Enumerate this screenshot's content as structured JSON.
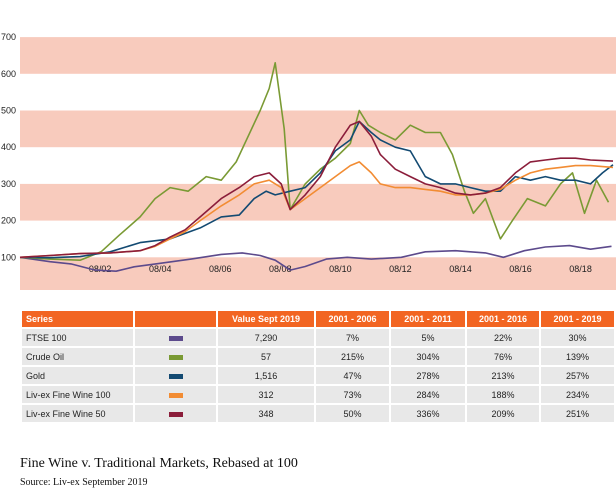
{
  "chart_data": {
    "type": "line",
    "x_unit": "year",
    "ylim": [
      0,
      700
    ],
    "y_ticks": [
      100,
      200,
      300,
      400,
      500,
      600,
      700
    ],
    "x_tick_labels": [
      {
        "label": "08/02",
        "x": 2002.67
      },
      {
        "label": "08/04",
        "x": 2004.67
      },
      {
        "label": "08/06",
        "x": 2006.67
      },
      {
        "label": "08/08",
        "x": 2008.67
      },
      {
        "label": "08/10",
        "x": 2010.67
      },
      {
        "label": "08/12",
        "x": 2012.67
      },
      {
        "label": "08/14",
        "x": 2014.67
      },
      {
        "label": "08/16",
        "x": 2016.67
      },
      {
        "label": "08/18",
        "x": 2018.67
      }
    ],
    "band_color": "#f8cbbd",
    "series": [
      {
        "name": "FTSE 100",
        "color": "#5c4a8c",
        "points": [
          [
            2000.0,
            100
          ],
          [
            2001.0,
            88
          ],
          [
            2001.7,
            82
          ],
          [
            2002.5,
            65
          ],
          [
            2003.2,
            62
          ],
          [
            2003.8,
            74
          ],
          [
            2004.7,
            84
          ],
          [
            2005.7,
            95
          ],
          [
            2006.7,
            108
          ],
          [
            2007.4,
            112
          ],
          [
            2008.0,
            105
          ],
          [
            2008.5,
            92
          ],
          [
            2009.0,
            65
          ],
          [
            2009.5,
            75
          ],
          [
            2010.2,
            95
          ],
          [
            2010.9,
            100
          ],
          [
            2011.7,
            95
          ],
          [
            2012.7,
            100
          ],
          [
            2013.5,
            115
          ],
          [
            2014.5,
            118
          ],
          [
            2015.5,
            112
          ],
          [
            2016.1,
            100
          ],
          [
            2016.8,
            118
          ],
          [
            2017.5,
            128
          ],
          [
            2018.3,
            132
          ],
          [
            2019.0,
            122
          ],
          [
            2019.7,
            130
          ]
        ]
      },
      {
        "name": "Crude Oil",
        "color": "#7a9a34",
        "points": [
          [
            2000.0,
            100
          ],
          [
            2001.0,
            95
          ],
          [
            2002.0,
            92
          ],
          [
            2002.7,
            115
          ],
          [
            2003.3,
            160
          ],
          [
            2004.0,
            210
          ],
          [
            2004.5,
            260
          ],
          [
            2005.0,
            290
          ],
          [
            2005.6,
            280
          ],
          [
            2006.2,
            320
          ],
          [
            2006.7,
            310
          ],
          [
            2007.2,
            360
          ],
          [
            2007.6,
            430
          ],
          [
            2008.0,
            500
          ],
          [
            2008.3,
            560
          ],
          [
            2008.5,
            630
          ],
          [
            2008.8,
            450
          ],
          [
            2009.0,
            230
          ],
          [
            2009.5,
            300
          ],
          [
            2010.0,
            340
          ],
          [
            2010.5,
            370
          ],
          [
            2011.0,
            410
          ],
          [
            2011.3,
            500
          ],
          [
            2011.6,
            460
          ],
          [
            2012.0,
            440
          ],
          [
            2012.5,
            420
          ],
          [
            2013.0,
            460
          ],
          [
            2013.5,
            440
          ],
          [
            2014.0,
            440
          ],
          [
            2014.4,
            380
          ],
          [
            2014.8,
            280
          ],
          [
            2015.1,
            220
          ],
          [
            2015.5,
            260
          ],
          [
            2016.0,
            150
          ],
          [
            2016.4,
            200
          ],
          [
            2016.9,
            260
          ],
          [
            2017.5,
            240
          ],
          [
            2018.0,
            300
          ],
          [
            2018.4,
            330
          ],
          [
            2018.8,
            220
          ],
          [
            2019.2,
            310
          ],
          [
            2019.6,
            250
          ]
        ]
      },
      {
        "name": "Gold",
        "color": "#134a72",
        "points": [
          [
            2000.0,
            100
          ],
          [
            2001.0,
            99
          ],
          [
            2002.0,
            102
          ],
          [
            2003.0,
            115
          ],
          [
            2004.0,
            140
          ],
          [
            2005.0,
            150
          ],
          [
            2006.0,
            180
          ],
          [
            2006.7,
            210
          ],
          [
            2007.3,
            215
          ],
          [
            2007.8,
            260
          ],
          [
            2008.2,
            280
          ],
          [
            2008.5,
            270
          ],
          [
            2009.0,
            280
          ],
          [
            2009.5,
            290
          ],
          [
            2010.0,
            330
          ],
          [
            2010.5,
            390
          ],
          [
            2011.0,
            420
          ],
          [
            2011.3,
            470
          ],
          [
            2011.7,
            440
          ],
          [
            2012.0,
            420
          ],
          [
            2012.5,
            400
          ],
          [
            2013.0,
            390
          ],
          [
            2013.5,
            320
          ],
          [
            2014.0,
            300
          ],
          [
            2014.5,
            300
          ],
          [
            2015.0,
            290
          ],
          [
            2015.5,
            280
          ],
          [
            2016.0,
            280
          ],
          [
            2016.5,
            320
          ],
          [
            2017.0,
            310
          ],
          [
            2017.5,
            320
          ],
          [
            2018.0,
            310
          ],
          [
            2018.5,
            310
          ],
          [
            2019.0,
            300
          ],
          [
            2019.4,
            330
          ],
          [
            2019.75,
            352
          ]
        ]
      },
      {
        "name": "Liv-ex Fine Wine 100",
        "color": "#f28c33",
        "points": [
          [
            2000.0,
            100
          ],
          [
            2001.0,
            105
          ],
          [
            2002.0,
            110
          ],
          [
            2003.0,
            112
          ],
          [
            2004.0,
            118
          ],
          [
            2004.5,
            130
          ],
          [
            2005.0,
            150
          ],
          [
            2005.5,
            170
          ],
          [
            2006.0,
            200
          ],
          [
            2006.7,
            240
          ],
          [
            2007.3,
            270
          ],
          [
            2007.8,
            300
          ],
          [
            2008.3,
            310
          ],
          [
            2008.7,
            290
          ],
          [
            2009.0,
            230
          ],
          [
            2009.5,
            260
          ],
          [
            2010.0,
            290
          ],
          [
            2010.5,
            320
          ],
          [
            2011.0,
            350
          ],
          [
            2011.3,
            360
          ],
          [
            2011.7,
            330
          ],
          [
            2012.0,
            300
          ],
          [
            2012.5,
            290
          ],
          [
            2013.0,
            290
          ],
          [
            2013.5,
            285
          ],
          [
            2014.0,
            280
          ],
          [
            2014.5,
            270
          ],
          [
            2015.0,
            270
          ],
          [
            2015.5,
            275
          ],
          [
            2016.0,
            285
          ],
          [
            2016.5,
            310
          ],
          [
            2017.0,
            330
          ],
          [
            2017.5,
            340
          ],
          [
            2018.0,
            345
          ],
          [
            2018.5,
            350
          ],
          [
            2019.0,
            350
          ],
          [
            2019.75,
            345
          ]
        ]
      },
      {
        "name": "Liv-ex Fine Wine 50",
        "color": "#8b1d3a",
        "points": [
          [
            2000.0,
            100
          ],
          [
            2001.0,
            105
          ],
          [
            2002.0,
            110
          ],
          [
            2003.0,
            112
          ],
          [
            2004.0,
            118
          ],
          [
            2004.5,
            132
          ],
          [
            2005.0,
            155
          ],
          [
            2005.5,
            175
          ],
          [
            2006.0,
            210
          ],
          [
            2006.7,
            260
          ],
          [
            2007.3,
            290
          ],
          [
            2007.8,
            320
          ],
          [
            2008.3,
            330
          ],
          [
            2008.7,
            300
          ],
          [
            2009.0,
            230
          ],
          [
            2009.5,
            270
          ],
          [
            2010.0,
            320
          ],
          [
            2010.5,
            400
          ],
          [
            2011.0,
            460
          ],
          [
            2011.3,
            470
          ],
          [
            2011.7,
            430
          ],
          [
            2012.0,
            380
          ],
          [
            2012.5,
            340
          ],
          [
            2013.0,
            320
          ],
          [
            2013.5,
            300
          ],
          [
            2014.0,
            290
          ],
          [
            2014.5,
            275
          ],
          [
            2015.0,
            270
          ],
          [
            2015.5,
            275
          ],
          [
            2016.0,
            290
          ],
          [
            2016.5,
            330
          ],
          [
            2017.0,
            360
          ],
          [
            2017.5,
            365
          ],
          [
            2018.0,
            370
          ],
          [
            2018.5,
            370
          ],
          [
            2019.0,
            365
          ],
          [
            2019.75,
            362
          ]
        ]
      }
    ]
  },
  "table": {
    "headers": [
      "Series",
      "",
      "Value Sept 2019",
      "2001 - 2006",
      "2001 - 2011",
      "2001 - 2016",
      "2001 - 2019"
    ],
    "rows": [
      {
        "name": "FTSE 100",
        "color": "#5c4a8c",
        "value": "7,290",
        "p2006": "7%",
        "p2011": "5%",
        "p2016": "22%",
        "p2019": "30%"
      },
      {
        "name": "Crude Oil",
        "color": "#7a9a34",
        "value": "57",
        "p2006": "215%",
        "p2011": "304%",
        "p2016": "76%",
        "p2019": "139%"
      },
      {
        "name": "Gold",
        "color": "#134a72",
        "value": "1,516",
        "p2006": "47%",
        "p2011": "278%",
        "p2016": "213%",
        "p2019": "257%"
      },
      {
        "name": "Liv-ex Fine Wine 100",
        "color": "#f28c33",
        "value": "312",
        "p2006": "73%",
        "p2011": "284%",
        "p2016": "188%",
        "p2019": "234%"
      },
      {
        "name": "Liv-ex Fine Wine 50",
        "color": "#8b1d3a",
        "value": "348",
        "p2006": "50%",
        "p2011": "336%",
        "p2016": "209%",
        "p2019": "251%"
      }
    ]
  },
  "caption": "Fine Wine v. Traditional Markets, Rebased at 100",
  "source": "Source: Liv-ex September 2019"
}
